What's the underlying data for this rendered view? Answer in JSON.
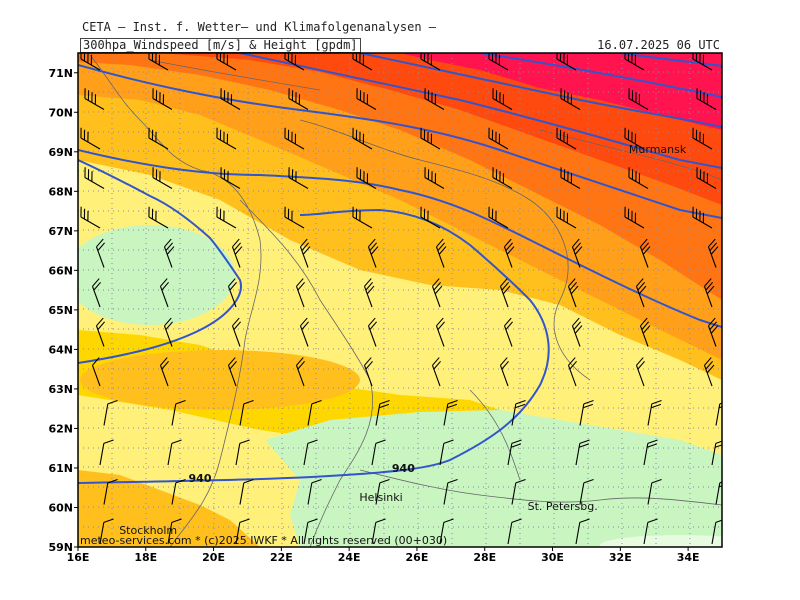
{
  "header": {
    "title": "CETA — Inst. f. Wetter— und Klimafolgenanalysen —",
    "subtitle": "300hpa_Windspeed [m/s] & Height [gpdm]",
    "valid_time": "16.07.2025 06 UTC"
  },
  "map": {
    "lon_range": [
      16,
      35
    ],
    "lat_range": [
      59,
      71.5
    ],
    "lon_ticks": [
      "16E",
      "18E",
      "20E",
      "22E",
      "24E",
      "26E",
      "28E",
      "30E",
      "32E",
      "34E"
    ],
    "lat_ticks": [
      "59N",
      "60N",
      "61N",
      "62N",
      "63N",
      "64N",
      "65N",
      "66N",
      "67N",
      "68N",
      "69N",
      "70N",
      "71N"
    ],
    "cities": [
      {
        "name": "Murmansk",
        "lon": 33.1,
        "lat": 68.97
      },
      {
        "name": "Helsinki",
        "lon": 24.94,
        "lat": 60.17
      },
      {
        "name": "Stockholm",
        "lon": 18.07,
        "lat": 59.33
      },
      {
        "name": "St. Petersbg.",
        "lon": 30.3,
        "lat": 59.94
      }
    ],
    "contour_labels": [
      {
        "text": "940",
        "lon": 19.6,
        "lat": 60.65
      },
      {
        "text": "940",
        "lon": 25.6,
        "lat": 60.9
      }
    ],
    "footer": "meteo-services.com * (c)2025 IWKF * All rights reserved (00+030)",
    "colors": {
      "lt_green": "#c8f5c0",
      "lt_yellow": "#fff07a",
      "yellow": "#ffd700",
      "gold": "#ffc01e",
      "orange": "#ff9f1a",
      "dk_orange": "#ff7514",
      "red": "#ff4a0f",
      "crimson": "#ff1450",
      "contour": "#3355cc",
      "border": "#666666"
    }
  }
}
